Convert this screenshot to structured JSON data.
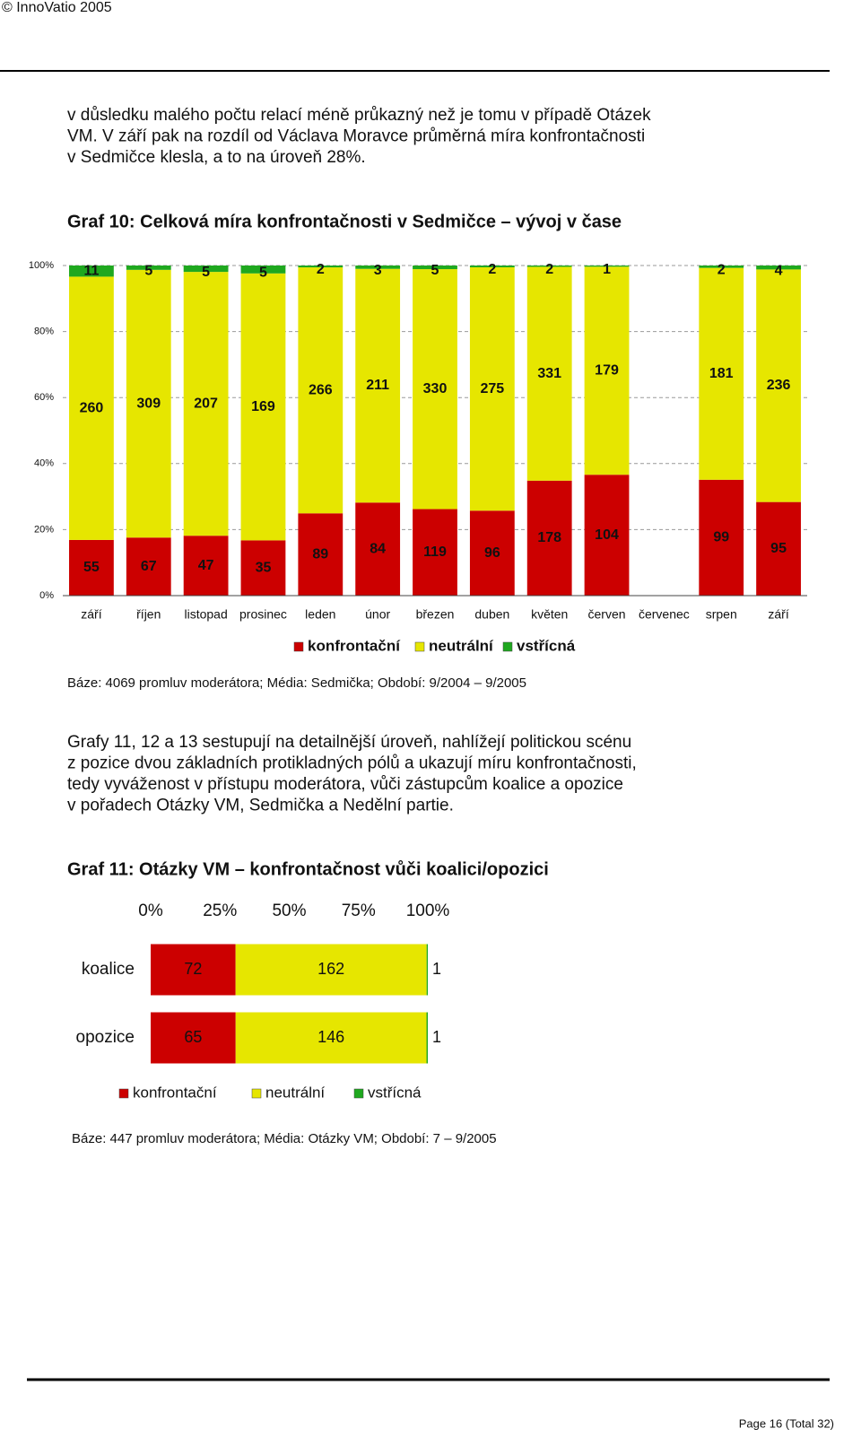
{
  "header": {
    "copyright": "© InnoVatio 2005"
  },
  "paragraphs": [
    [
      "v důsledku malého počtu relací méně průkazný než je tomu v případě Otázek",
      "VM. V září pak na rozdíl od Václava Moravce průměrná míra konfrontačnosti",
      "v Sedmičce klesla, a to na úroveň 28%."
    ],
    [
      "Grafy 11, 12 a 13 sestupují na detailnější úroveň, nahlížejí politickou scénu",
      "z pozice dvou základních protikladných pólů a ukazují míru konfrontačnosti,",
      "tedy vyváženost v přístupu moderátora, vůči zástupcům koalice a opozice",
      "v pořadech Otázky VM, Sedmička a Nedělní partie."
    ]
  ],
  "chart_data": [
    {
      "type": "bar",
      "stacking": "percent",
      "orientation": "vertical",
      "title": "Graf 10: Celková míra konfrontačnosti v Sedmičce – vývoj v čase",
      "categories": [
        "září",
        "říjen",
        "listopad",
        "prosinec",
        "leden",
        "únor",
        "březen",
        "duben",
        "květen",
        "červen",
        "červenec",
        "srpen",
        "září"
      ],
      "series": [
        {
          "name": "konfrontační",
          "color": "#cc0000",
          "values": [
            55,
            67,
            47,
            35,
            89,
            84,
            119,
            96,
            178,
            104,
            null,
            99,
            95
          ]
        },
        {
          "name": "neutrální",
          "color": "#e6e600",
          "values": [
            260,
            309,
            207,
            169,
            266,
            211,
            330,
            275,
            331,
            179,
            null,
            181,
            236
          ]
        },
        {
          "name": "vstřícná",
          "color": "#1fa81f",
          "values": [
            11,
            5,
            5,
            5,
            2,
            3,
            5,
            2,
            2,
            1,
            null,
            2,
            4
          ]
        }
      ],
      "ylim": [
        0,
        100
      ],
      "yticks": [
        {
          "value": 0,
          "label": "0%"
        },
        {
          "value": 20,
          "label": "20%"
        },
        {
          "value": 40,
          "label": "40%"
        },
        {
          "value": 60,
          "label": "60%"
        },
        {
          "value": 80,
          "label": "80%"
        },
        {
          "value": 100,
          "label": "100%"
        }
      ],
      "grid": true,
      "legend": "bottom",
      "note": "Báze: 4069 promluv moderátora; Média: Sedmička; Období: 9/2004 – 9/2005"
    },
    {
      "type": "bar",
      "stacking": "percent",
      "orientation": "horizontal",
      "title": "Graf 11: Otázky VM – konfrontačnost vůči koalici/opozici",
      "categories": [
        "koalice",
        "opozice"
      ],
      "series": [
        {
          "name": "konfrontační",
          "color": "#cc0000",
          "values": [
            72,
            65
          ]
        },
        {
          "name": "neutrální",
          "color": "#e6e600",
          "values": [
            162,
            146
          ]
        },
        {
          "name": "vstřícná",
          "color": "#1fa81f",
          "values": [
            1,
            1
          ]
        }
      ],
      "xlim": [
        0,
        100
      ],
      "xticks": [
        {
          "value": 0,
          "label": "0%"
        },
        {
          "value": 25,
          "label": "25%"
        },
        {
          "value": 50,
          "label": "50%"
        },
        {
          "value": 75,
          "label": "75%"
        },
        {
          "value": 100,
          "label": "100%"
        }
      ],
      "grid": false,
      "legend": "bottom",
      "note": "Báze: 447 promluv moderátora; Média: Otázky VM; Období: 7 – 9/2005"
    }
  ],
  "footer": {
    "page": "Page 16 (Total 32)"
  }
}
